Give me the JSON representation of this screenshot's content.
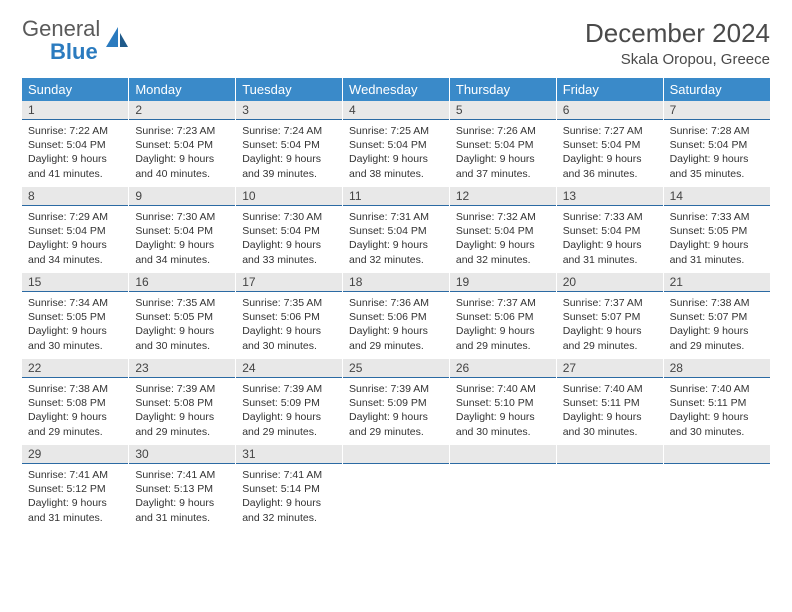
{
  "brand": {
    "word1": "General",
    "word2": "Blue"
  },
  "header": {
    "title": "December 2024",
    "location": "Skala Oropou, Greece"
  },
  "colors": {
    "header_bg": "#3a8ac9",
    "header_text": "#ffffff",
    "daynum_bg": "#e8e8e8",
    "daynum_border": "#2b6aa3",
    "text": "#333333",
    "brand_gray": "#5a5a5a",
    "brand_blue": "#2b7bbf"
  },
  "layout": {
    "type": "table",
    "columns": 7,
    "rows": 5,
    "cell_font_size": 10.5,
    "header_font_size": 13
  },
  "weekdays": [
    "Sunday",
    "Monday",
    "Tuesday",
    "Wednesday",
    "Thursday",
    "Friday",
    "Saturday"
  ],
  "days": [
    {
      "n": "1",
      "sunrise": "7:22 AM",
      "sunset": "5:04 PM",
      "daylight": "9 hours and 41 minutes."
    },
    {
      "n": "2",
      "sunrise": "7:23 AM",
      "sunset": "5:04 PM",
      "daylight": "9 hours and 40 minutes."
    },
    {
      "n": "3",
      "sunrise": "7:24 AM",
      "sunset": "5:04 PM",
      "daylight": "9 hours and 39 minutes."
    },
    {
      "n": "4",
      "sunrise": "7:25 AM",
      "sunset": "5:04 PM",
      "daylight": "9 hours and 38 minutes."
    },
    {
      "n": "5",
      "sunrise": "7:26 AM",
      "sunset": "5:04 PM",
      "daylight": "9 hours and 37 minutes."
    },
    {
      "n": "6",
      "sunrise": "7:27 AM",
      "sunset": "5:04 PM",
      "daylight": "9 hours and 36 minutes."
    },
    {
      "n": "7",
      "sunrise": "7:28 AM",
      "sunset": "5:04 PM",
      "daylight": "9 hours and 35 minutes."
    },
    {
      "n": "8",
      "sunrise": "7:29 AM",
      "sunset": "5:04 PM",
      "daylight": "9 hours and 34 minutes."
    },
    {
      "n": "9",
      "sunrise": "7:30 AM",
      "sunset": "5:04 PM",
      "daylight": "9 hours and 34 minutes."
    },
    {
      "n": "10",
      "sunrise": "7:30 AM",
      "sunset": "5:04 PM",
      "daylight": "9 hours and 33 minutes."
    },
    {
      "n": "11",
      "sunrise": "7:31 AM",
      "sunset": "5:04 PM",
      "daylight": "9 hours and 32 minutes."
    },
    {
      "n": "12",
      "sunrise": "7:32 AM",
      "sunset": "5:04 PM",
      "daylight": "9 hours and 32 minutes."
    },
    {
      "n": "13",
      "sunrise": "7:33 AM",
      "sunset": "5:04 PM",
      "daylight": "9 hours and 31 minutes."
    },
    {
      "n": "14",
      "sunrise": "7:33 AM",
      "sunset": "5:05 PM",
      "daylight": "9 hours and 31 minutes."
    },
    {
      "n": "15",
      "sunrise": "7:34 AM",
      "sunset": "5:05 PM",
      "daylight": "9 hours and 30 minutes."
    },
    {
      "n": "16",
      "sunrise": "7:35 AM",
      "sunset": "5:05 PM",
      "daylight": "9 hours and 30 minutes."
    },
    {
      "n": "17",
      "sunrise": "7:35 AM",
      "sunset": "5:06 PM",
      "daylight": "9 hours and 30 minutes."
    },
    {
      "n": "18",
      "sunrise": "7:36 AM",
      "sunset": "5:06 PM",
      "daylight": "9 hours and 29 minutes."
    },
    {
      "n": "19",
      "sunrise": "7:37 AM",
      "sunset": "5:06 PM",
      "daylight": "9 hours and 29 minutes."
    },
    {
      "n": "20",
      "sunrise": "7:37 AM",
      "sunset": "5:07 PM",
      "daylight": "9 hours and 29 minutes."
    },
    {
      "n": "21",
      "sunrise": "7:38 AM",
      "sunset": "5:07 PM",
      "daylight": "9 hours and 29 minutes."
    },
    {
      "n": "22",
      "sunrise": "7:38 AM",
      "sunset": "5:08 PM",
      "daylight": "9 hours and 29 minutes."
    },
    {
      "n": "23",
      "sunrise": "7:39 AM",
      "sunset": "5:08 PM",
      "daylight": "9 hours and 29 minutes."
    },
    {
      "n": "24",
      "sunrise": "7:39 AM",
      "sunset": "5:09 PM",
      "daylight": "9 hours and 29 minutes."
    },
    {
      "n": "25",
      "sunrise": "7:39 AM",
      "sunset": "5:09 PM",
      "daylight": "9 hours and 29 minutes."
    },
    {
      "n": "26",
      "sunrise": "7:40 AM",
      "sunset": "5:10 PM",
      "daylight": "9 hours and 30 minutes."
    },
    {
      "n": "27",
      "sunrise": "7:40 AM",
      "sunset": "5:11 PM",
      "daylight": "9 hours and 30 minutes."
    },
    {
      "n": "28",
      "sunrise": "7:40 AM",
      "sunset": "5:11 PM",
      "daylight": "9 hours and 30 minutes."
    },
    {
      "n": "29",
      "sunrise": "7:41 AM",
      "sunset": "5:12 PM",
      "daylight": "9 hours and 31 minutes."
    },
    {
      "n": "30",
      "sunrise": "7:41 AM",
      "sunset": "5:13 PM",
      "daylight": "9 hours and 31 minutes."
    },
    {
      "n": "31",
      "sunrise": "7:41 AM",
      "sunset": "5:14 PM",
      "daylight": "9 hours and 32 minutes."
    }
  ],
  "labels": {
    "sunrise": "Sunrise:",
    "sunset": "Sunset:",
    "daylight": "Daylight:"
  }
}
